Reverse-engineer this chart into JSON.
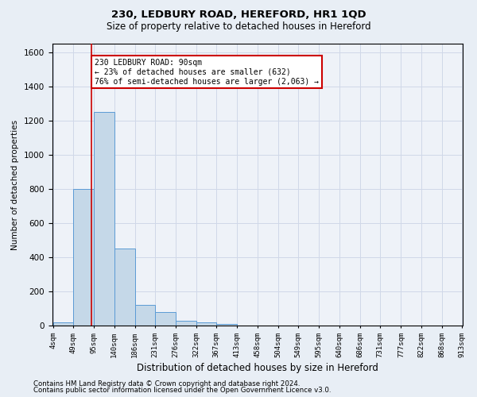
{
  "title1": "230, LEDBURY ROAD, HEREFORD, HR1 1QD",
  "title2": "Size of property relative to detached houses in Hereford",
  "xlabel": "Distribution of detached houses by size in Hereford",
  "ylabel": "Number of detached properties",
  "footer1": "Contains HM Land Registry data © Crown copyright and database right 2024.",
  "footer2": "Contains public sector information licensed under the Open Government Licence v3.0.",
  "annotation_line1": "230 LEDBURY ROAD: 90sqm",
  "annotation_line2": "← 23% of detached houses are smaller (632)",
  "annotation_line3": "76% of semi-detached houses are larger (2,063) →",
  "bin_edges": [
    4,
    49,
    95,
    140,
    186,
    231,
    276,
    322,
    367,
    413,
    458,
    504,
    549,
    595,
    640,
    686,
    731,
    777,
    822,
    868,
    913
  ],
  "counts": [
    20,
    800,
    1250,
    450,
    120,
    80,
    30,
    20,
    10,
    0,
    0,
    0,
    0,
    0,
    0,
    0,
    0,
    0,
    0,
    0
  ],
  "bar_color": "#c5d8e8",
  "bar_edge_color": "#5b9bd5",
  "vline_x": 90,
  "vline_color": "#cc0000",
  "annotation_box_edge_color": "#cc0000",
  "annotation_box_face_color": "#ffffff",
  "ylim": [
    0,
    1650
  ],
  "yticks": [
    0,
    200,
    400,
    600,
    800,
    1000,
    1200,
    1400,
    1600
  ],
  "grid_color": "#d0d8e8",
  "background_color": "#e8eef5",
  "plot_background_color": "#eef2f8",
  "fig_width": 6.0,
  "fig_height": 5.0,
  "dpi": 100
}
